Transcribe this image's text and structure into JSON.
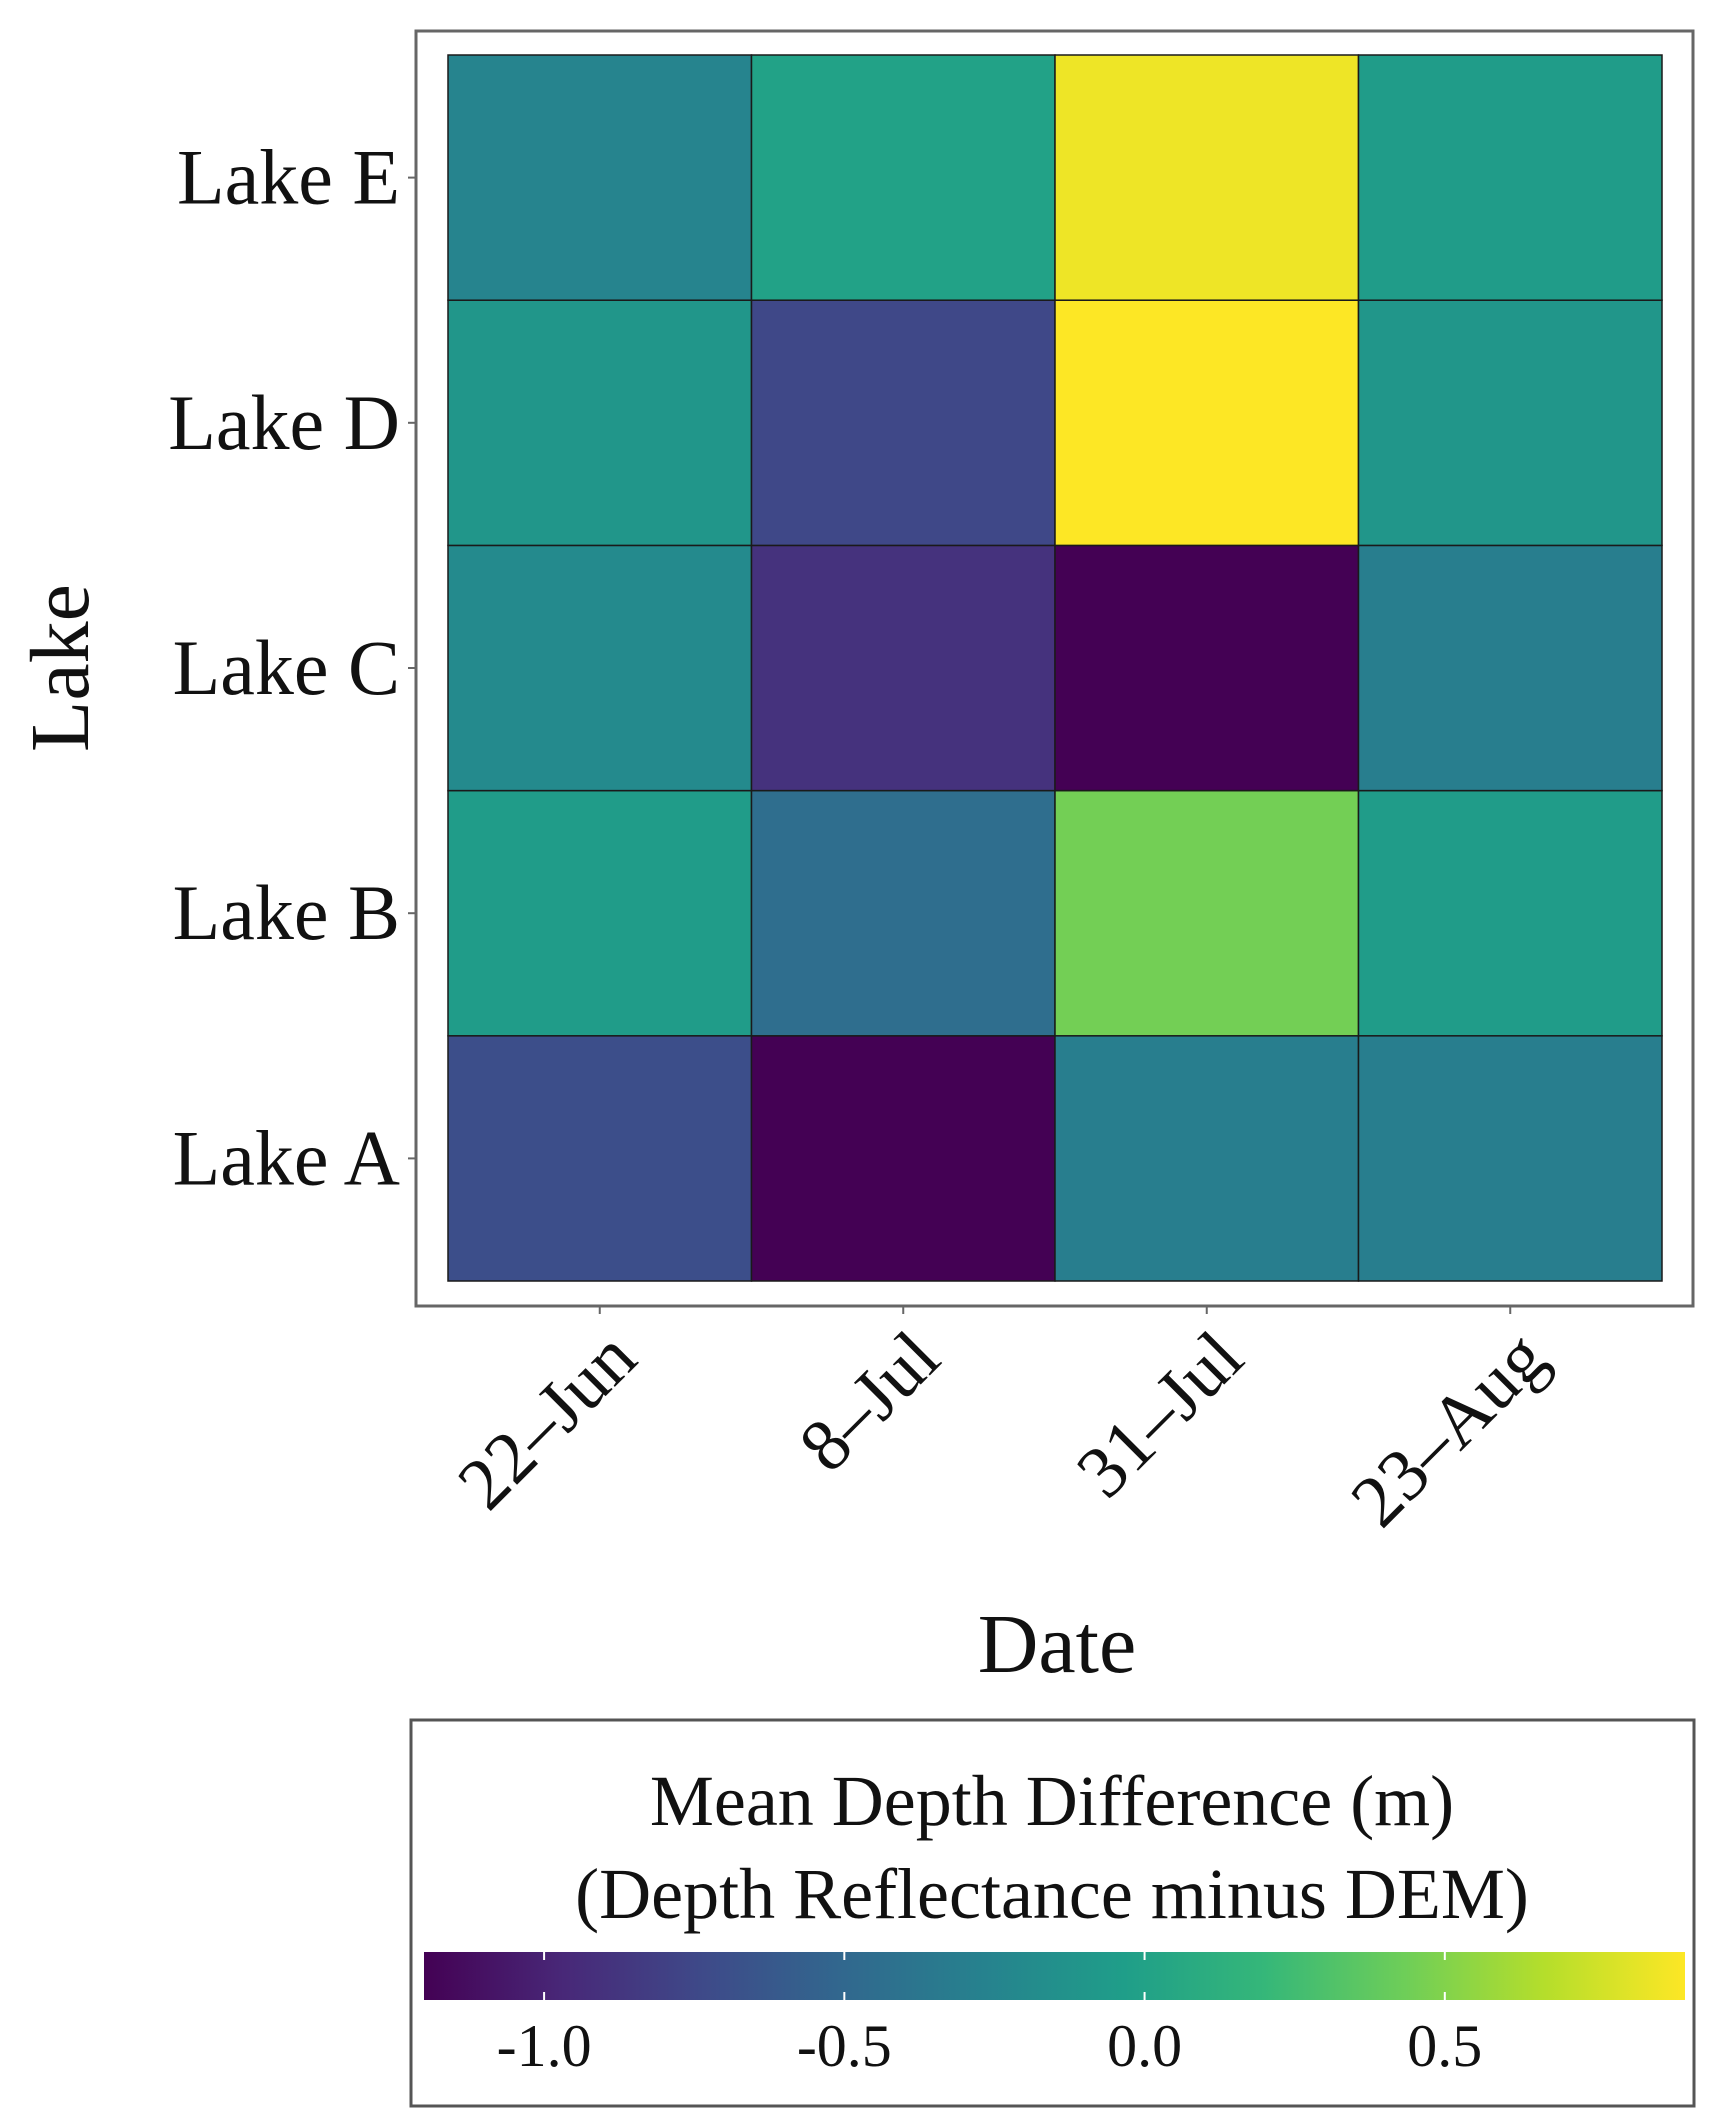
{
  "chart_data": {
    "type": "heatmap",
    "title": "",
    "xlabel": "Date",
    "ylabel": "Lake",
    "x_categories": [
      "22–Jun",
      "8–Jul",
      "31–Jul",
      "23–Aug"
    ],
    "y_categories": [
      "Lake A",
      "Lake B",
      "Lake C",
      "Lake D",
      "Lake E"
    ],
    "values": [
      [
        -0.7,
        -1.2,
        -0.3,
        -0.3
      ],
      [
        -0.05,
        -0.45,
        0.45,
        -0.05
      ],
      [
        -0.2,
        -0.9,
        -1.2,
        -0.3
      ],
      [
        -0.1,
        -0.75,
        0.9,
        -0.1
      ],
      [
        -0.25,
        0.0,
        0.85,
        -0.05
      ]
    ],
    "colorbar": {
      "title_line1": "Mean Depth Difference (m)",
      "title_line2": "(Depth Reflectance minus DEM)",
      "range": [
        -1.2,
        0.9
      ],
      "ticks": [
        -1.0,
        -0.5,
        0.0,
        0.5
      ],
      "tick_labels": [
        "-1.0",
        "-0.5",
        "0.0",
        "0.5"
      ],
      "colormap": "viridis",
      "stops": [
        "#440154",
        "#482878",
        "#3e4a89",
        "#31688e",
        "#26828e",
        "#1f9e89",
        "#35b779",
        "#6ece58",
        "#b5de2b",
        "#fde725"
      ],
      "placement": "bottom"
    }
  }
}
